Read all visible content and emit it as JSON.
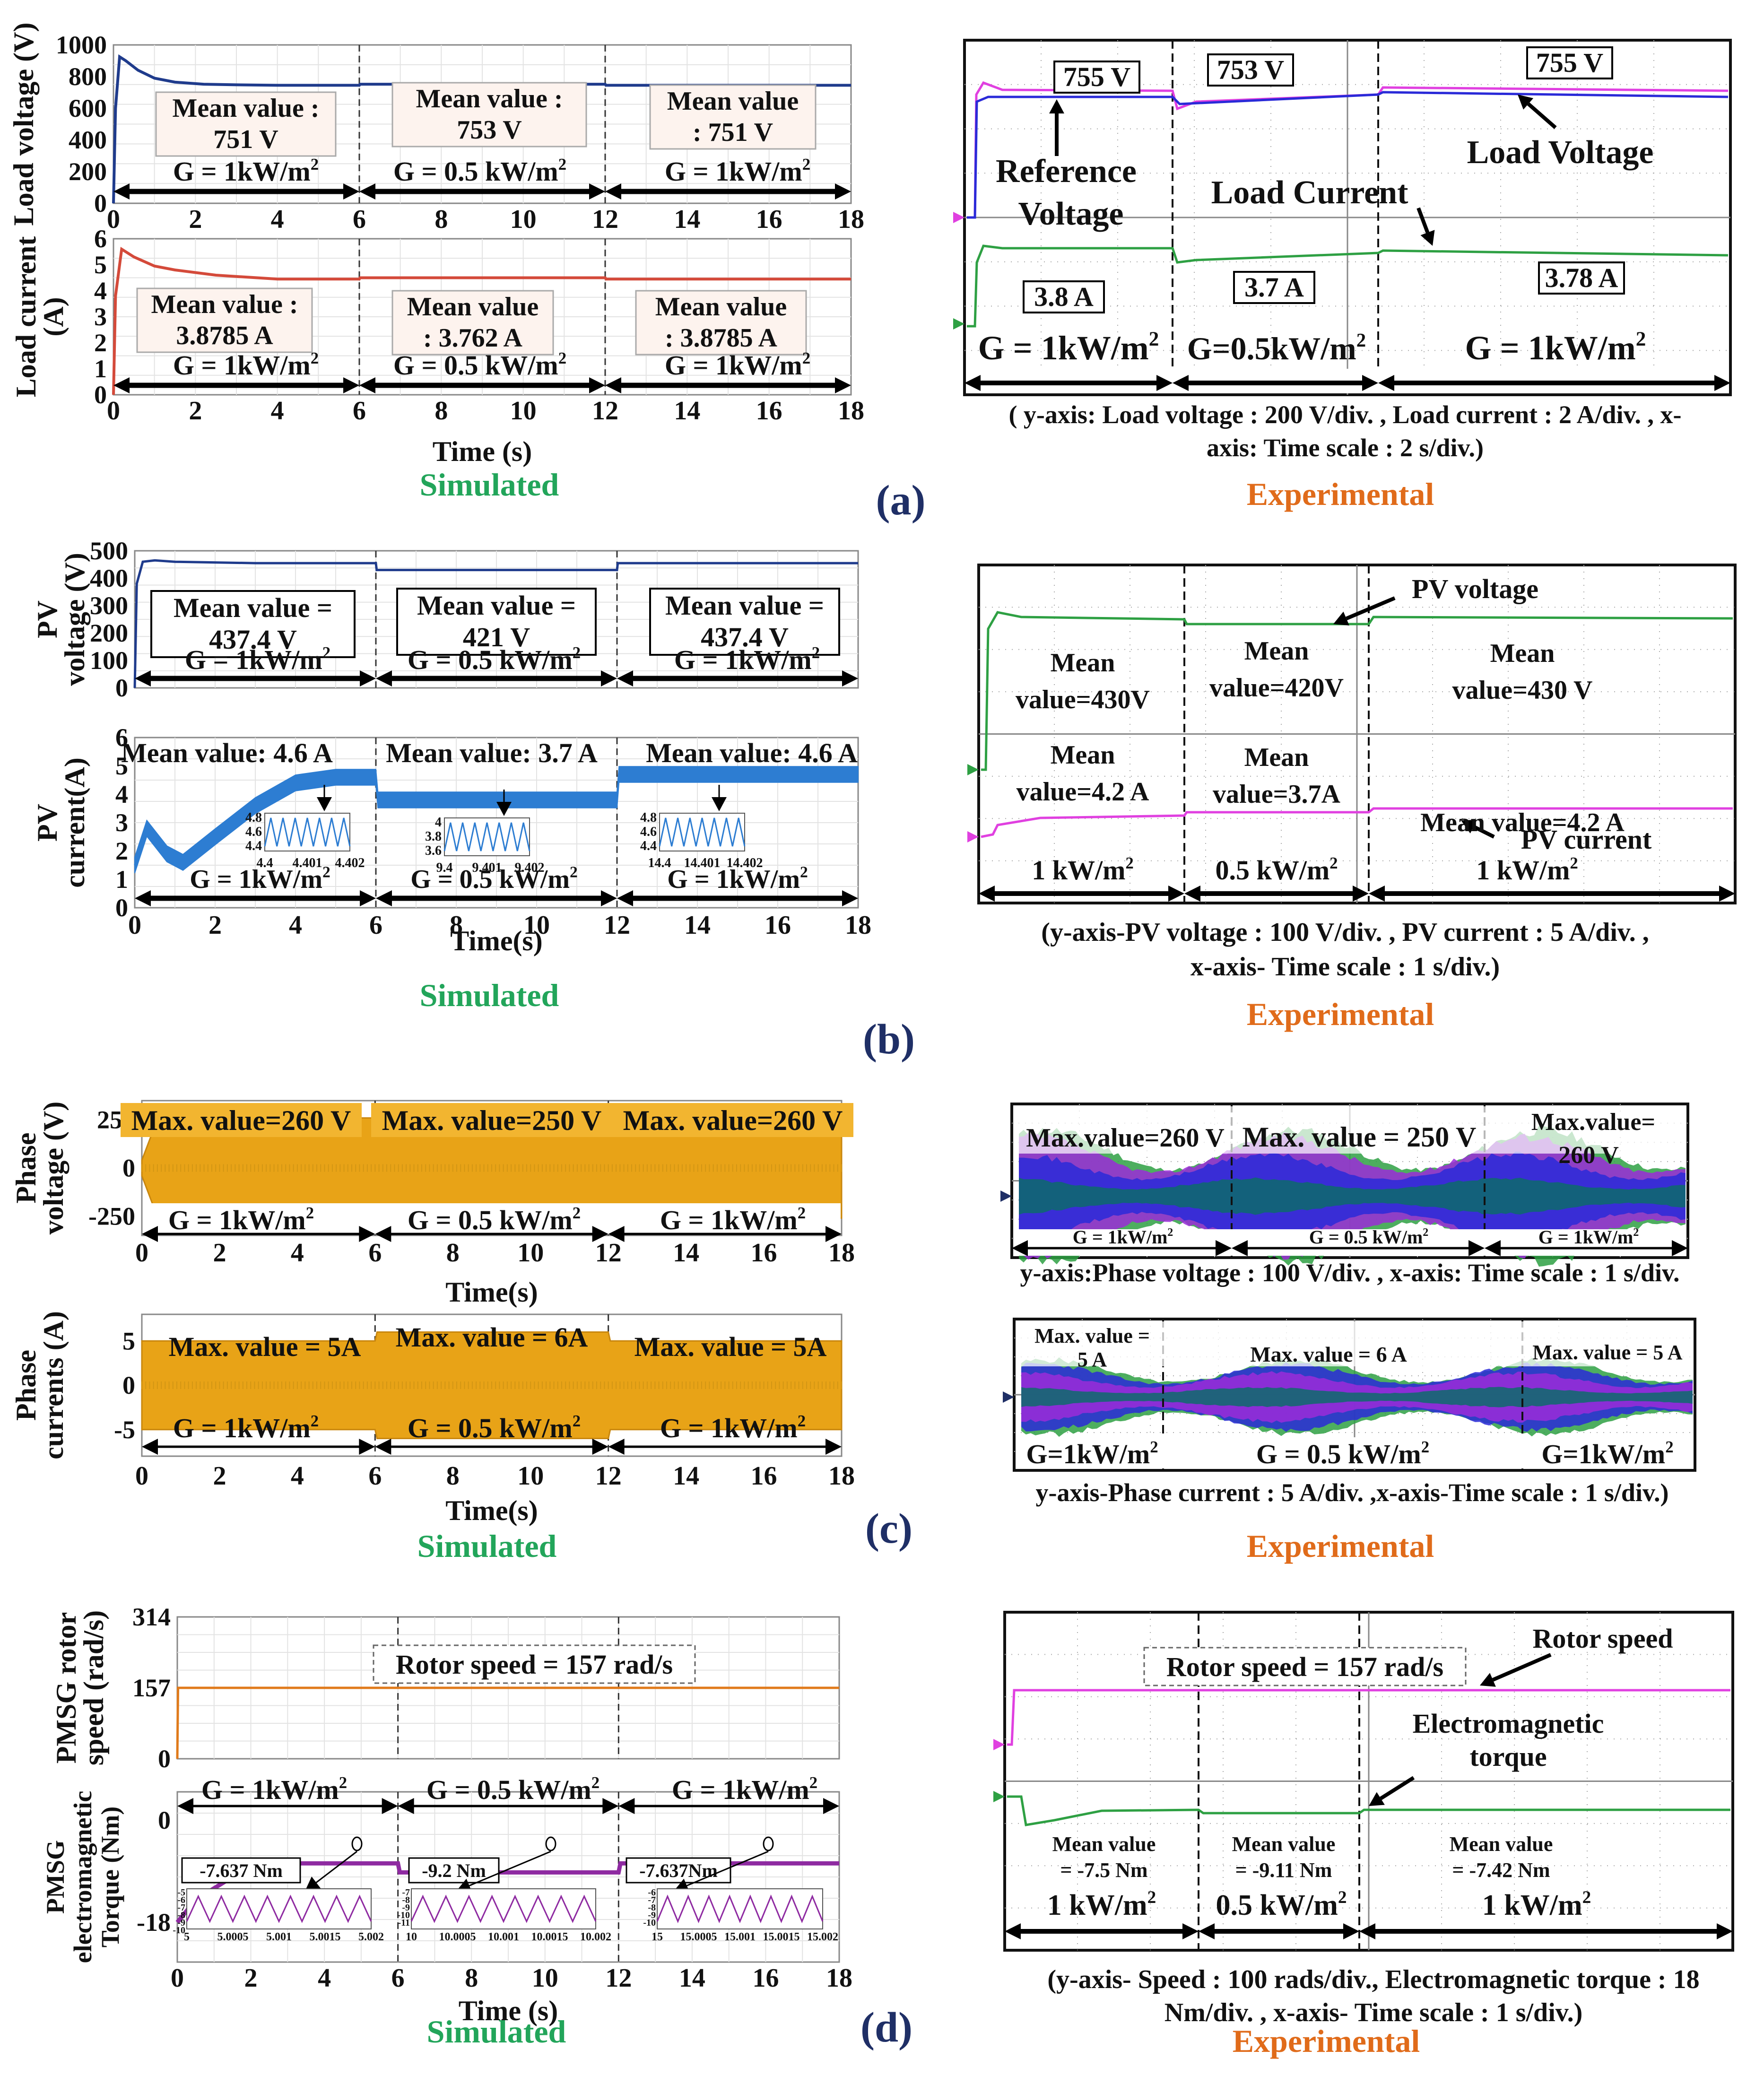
{
  "chart_data": [
    {
      "id": "a_sim_voltage",
      "panel": "(a)",
      "type": "line",
      "ylabel": "Load voltage (V)",
      "xlim": [
        0,
        18
      ],
      "ylim": [
        0,
        1000
      ],
      "yticks": [
        0,
        200,
        400,
        600,
        800,
        1000
      ],
      "xticks": [
        0,
        2,
        4,
        6,
        8,
        10,
        12,
        14,
        16,
        18
      ],
      "series": [
        {
          "name": "Load voltage",
          "color": "#1f3b8c",
          "x": [
            0,
            0.05,
            0.15,
            0.3,
            0.6,
            1,
            1.5,
            2.2,
            3,
            4,
            6,
            6.02,
            12,
            12.02,
            18
          ],
          "y": [
            0,
            600,
            925,
            900,
            840,
            790,
            765,
            752,
            748,
            745,
            745,
            752,
            752,
            745,
            745
          ]
        }
      ],
      "annotations": [
        {
          "text": "Mean value :",
          "text2": "751 V",
          "x": 4.1
        },
        {
          "text": "Mean value :",
          "text2": "753 V",
          "x": 8.8
        },
        {
          "text": "Mean value",
          "text2": ": 751 V",
          "x": 14.6
        }
      ],
      "regions": [
        "G = 1kW/m",
        "G = 0.5 kW/m",
        "G = 1kW/m"
      ]
    },
    {
      "id": "a_sim_current",
      "panel": "(a)",
      "type": "line",
      "ylabel": "Load current (A)",
      "xlabel": "Time (s)",
      "xlim": [
        0,
        18
      ],
      "ylim": [
        0,
        6
      ],
      "yticks": [
        0,
        1,
        2,
        3,
        4,
        5,
        6
      ],
      "xticks": [
        0,
        2,
        4,
        6,
        8,
        10,
        12,
        14,
        16,
        18
      ],
      "series": [
        {
          "name": "Load current",
          "color": "#d44a3a",
          "x": [
            0,
            0.05,
            0.2,
            0.5,
            1,
            1.5,
            2.5,
            4,
            6,
            6.02,
            12,
            12.02,
            18
          ],
          "y": [
            0,
            3.8,
            5.6,
            5.3,
            4.95,
            4.8,
            4.6,
            4.45,
            4.45,
            4.5,
            4.5,
            4.45,
            4.45
          ]
        }
      ],
      "annotations": [
        {
          "text": "Mean value :",
          "text2": "3.8785 A",
          "x": 4.1
        },
        {
          "text": "Mean value",
          "text2": ": 3.762 A",
          "x": 8.8
        },
        {
          "text": "Mean value",
          "text2": ": 3.8785 A",
          "x": 14.6
        }
      ],
      "regions": [
        "G = 1kW/m",
        "G = 0.5 kW/m",
        "G = 1kW/m"
      ]
    },
    {
      "id": "b_sim_voltage",
      "panel": "(b)",
      "type": "line",
      "ylabel": "PV voltage (V)",
      "xlim": [
        0,
        18
      ],
      "ylim": [
        0,
        500
      ],
      "yticks": [
        0,
        100,
        200,
        300,
        400,
        500
      ],
      "xticks": [
        0,
        2,
        4,
        6,
        8,
        10,
        12,
        14,
        16,
        18
      ],
      "series": [
        {
          "name": "PV voltage",
          "color": "#1f3b8c",
          "x": [
            0,
            0.05,
            0.2,
            0.5,
            1,
            3,
            6,
            6.02,
            12,
            12.02,
            18
          ],
          "y": [
            0,
            380,
            460,
            465,
            460,
            455,
            455,
            430,
            430,
            455,
            455
          ]
        }
      ],
      "annotations": [
        {
          "text": "Mean value =",
          "text2": "437.4 V",
          "x": 3.1
        },
        {
          "text": "Mean value =",
          "text2": "421 V",
          "x": 8.8
        },
        {
          "text": "Mean value =",
          "text2": "437.4 V",
          "x": 14.6
        }
      ],
      "regions": [
        "G = 1kW/m",
        "G = 0.5 kW/m",
        "G = 1kW/m"
      ]
    },
    {
      "id": "b_sim_current",
      "panel": "(b)",
      "type": "line",
      "ylabel": "PV current(A)",
      "xlabel": "Time(s)",
      "xlim": [
        0,
        18
      ],
      "ylim": [
        0,
        6
      ],
      "yticks": [
        0,
        1,
        2,
        3,
        4,
        5,
        6
      ],
      "xticks": [
        0,
        2,
        4,
        6,
        8,
        10,
        12,
        14,
        16,
        18
      ],
      "series": [
        {
          "name": "PV current",
          "color": "#2d7dd2",
          "x": [
            0,
            0.3,
            0.8,
            1.2,
            2,
            3,
            4,
            5,
            6,
            6.05,
            12,
            12.05,
            18
          ],
          "y": [
            1.5,
            2.8,
            1.9,
            1.6,
            2.5,
            3.6,
            4.4,
            4.6,
            4.6,
            3.8,
            3.8,
            4.7,
            4.7
          ]
        }
      ],
      "annotations": [
        {
          "text": "Mean value: 4.6 A",
          "x": 3.0
        },
        {
          "text": "Mean value: 3.7 A",
          "x": 9.0
        },
        {
          "text": "Mean value: 4.6 A",
          "x": 15.0
        }
      ],
      "insets": [
        {
          "ytick_labels": [
            "4.8",
            "4.6",
            "4.4"
          ],
          "xtick_labels": [
            "4.4",
            "4.401",
            "4.402"
          ]
        },
        {
          "ytick_labels": [
            "4",
            "3.8",
            "3.6"
          ],
          "xtick_labels": [
            "9.4",
            "9.401",
            "9.402"
          ]
        },
        {
          "ytick_labels": [
            "4.8",
            "4.6",
            "4.4"
          ],
          "xtick_labels": [
            "14.4",
            "14.401",
            "14.402"
          ]
        }
      ],
      "regions": [
        "G = 1kW/m",
        "G = 0.5 kW/m",
        "G = 1kW/m"
      ]
    },
    {
      "id": "c_sim_voltage",
      "panel": "(c)",
      "type": "area",
      "ylabel": "Phase voltage (V)",
      "xlabel": "Time(s)",
      "xlim": [
        0,
        18
      ],
      "ylim": [
        -350,
        350
      ],
      "ytick_labels": [
        "250",
        "0",
        "-250"
      ],
      "yticks": [
        250,
        0,
        -250
      ],
      "xticks": [
        0,
        2,
        4,
        6,
        8,
        10,
        12,
        14,
        16,
        18
      ],
      "series": [
        {
          "name": "Phase voltage envelope",
          "color": "#e8a317",
          "x": [
            0,
            0.3,
            1,
            6,
            6.05,
            12,
            12.05,
            18
          ],
          "y": [
            40,
            200,
            260,
            260,
            250,
            250,
            260,
            260
          ]
        }
      ],
      "annotations": [
        "Max. value=260 V",
        "Max. value=250 V",
        "Max. value=260 V"
      ],
      "regions": [
        "G = 1kW/m",
        "G = 0.5 kW/m",
        "G = 1kW/m"
      ]
    },
    {
      "id": "c_sim_current",
      "panel": "(c)",
      "type": "area",
      "ylabel": "Phase currents (A)",
      "xlabel": "Time(s)",
      "xlim": [
        0,
        18
      ],
      "ylim": [
        -8,
        8
      ],
      "ytick_labels": [
        "5",
        "0",
        "-5"
      ],
      "yticks": [
        5,
        0,
        -5
      ],
      "xticks": [
        0,
        2,
        4,
        6,
        8,
        10,
        12,
        14,
        16,
        18
      ],
      "series": [
        {
          "name": "Phase current envelope",
          "color": "#e8a317",
          "x": [
            0,
            6,
            6.05,
            12,
            12.05,
            18
          ],
          "y": [
            5,
            5,
            6,
            6,
            5,
            5
          ]
        }
      ],
      "annotations": [
        "Max. value = 5A",
        "Max. value = 6A",
        "Max. value = 5A"
      ],
      "regions": [
        "G = 1kW/m",
        "G = 0.5 kW/m",
        "G = 1kW/m"
      ]
    },
    {
      "id": "d_sim_speed",
      "panel": "(d)",
      "type": "line",
      "ylabel": "PMSG rotor speed (rad/s)",
      "xlim": [
        0,
        18
      ],
      "ylim": [
        0,
        314
      ],
      "yticks": [
        0,
        157,
        314
      ],
      "series": [
        {
          "name": "Rotor speed",
          "color": "#e07a1a",
          "x": [
            0,
            0.02,
            18
          ],
          "y": [
            0,
            157,
            157
          ]
        }
      ],
      "annotations": [
        "Rotor speed = 157 rad/s"
      ]
    },
    {
      "id": "d_sim_torque",
      "panel": "(d)",
      "type": "line",
      "ylabel": "PMSG electromagnetic Torque (Nm)",
      "xlabel": "Time (s)",
      "xlim": [
        0,
        18
      ],
      "ylim": [
        -25,
        5
      ],
      "ytick_labels": [
        "0",
        "-18"
      ],
      "yticks": [
        0,
        -18
      ],
      "xticks": [
        0,
        2,
        4,
        6,
        8,
        10,
        12,
        14,
        16,
        18
      ],
      "series": [
        {
          "name": "Electromagnetic torque",
          "color": "#8e2aa1",
          "x": [
            0,
            0.5,
            1.5,
            3,
            6,
            6.05,
            12,
            12.05,
            18
          ],
          "y": [
            -18,
            -14,
            -10,
            -7.6,
            -7.6,
            -9.2,
            -9.2,
            -7.6,
            -7.6
          ]
        }
      ],
      "annotations": [
        "-7.637 Nm",
        "-9.2 Nm",
        "-7.637Nm"
      ],
      "insets": [
        {
          "ytick_labels": [
            "-5",
            "-6",
            "-7",
            "-8",
            "-9",
            "-10"
          ],
          "xtick_labels": [
            "5",
            "5.0005",
            "5.001",
            "5.0015",
            "5.002"
          ]
        },
        {
          "ytick_labels": [
            "-7",
            "-8",
            "-9",
            "-10",
            "-11"
          ],
          "xtick_labels": [
            "10",
            "10.0005",
            "10.001",
            "10.0015",
            "10.002"
          ]
        },
        {
          "ytick_labels": [
            "-6",
            "-7",
            "-8",
            "-9",
            "-10"
          ],
          "xtick_labels": [
            "15",
            "15.0005",
            "15.001",
            "15.0015",
            "15.002"
          ]
        }
      ],
      "regions": [
        "G = 1kW/m",
        "G = 0.5 kW/m",
        "G = 1kW/m"
      ]
    },
    {
      "id": "a_exp",
      "panel": "(a)",
      "type": "line",
      "kind": "oscilloscope",
      "values_shown": [
        "755 V",
        "753 V",
        "755 V",
        "3.8 A",
        "3.7 A",
        "3.78 A"
      ],
      "labels": [
        "Reference",
        "Voltage",
        "Load Current",
        "Load Voltage"
      ],
      "regions": [
        "G = 1kW/m",
        "G=0.5kW/m",
        "G = 1kW/m"
      ],
      "caption": [
        "( y-axis: Load voltage : 200 V/div. , Load current : 2 A/div. , x-",
        "axis: Time scale : 2 s/div.)"
      ]
    },
    {
      "id": "b_exp",
      "panel": "(b)",
      "type": "line",
      "kind": "oscilloscope",
      "labels": [
        "PV voltage",
        "PV current"
      ],
      "means_top": [
        [
          "Mean",
          "value=430V"
        ],
        [
          "Mean",
          "value=420V"
        ],
        [
          "Mean",
          "value=430 V"
        ]
      ],
      "means_bottom": [
        [
          "Mean",
          "value=4.2 A"
        ],
        [
          "Mean",
          "value=3.7A"
        ],
        [
          "",
          "Mean value=4.2 A"
        ]
      ],
      "regions": [
        "1 kW/m",
        "0.5 kW/m",
        "1 kW/m"
      ],
      "caption": [
        "(y-axis-PV voltage : 100 V/div. , PV current : 5 A/div. ,",
        "x-axis- Time scale : 1 s/div.)"
      ]
    },
    {
      "id": "c_exp_voltage",
      "panel": "(c)",
      "type": "area",
      "kind": "oscilloscope",
      "annotations": [
        "Max.value=260 V",
        "Max. value = 250 V",
        "Max.value=",
        "260 V"
      ],
      "regions": [
        "G = 1kW/m",
        "G = 0.5 kW/m",
        "G = 1kW/m"
      ],
      "caption": [
        "y-axis:Phase voltage : 100 V/div. , x-axis: Time scale : 1 s/div."
      ]
    },
    {
      "id": "c_exp_current",
      "panel": "(c)",
      "type": "area",
      "kind": "oscilloscope",
      "annotations": [
        "Max. value =",
        "5 A",
        "Max.  value = 6 A",
        "Max. value = 5 A"
      ],
      "regions": [
        "G=1kW/m",
        "G = 0.5 kW/m",
        "G=1kW/m"
      ],
      "caption": [
        "y-axis-Phase current : 5 A/div. ,x-axis-Time scale : 1 s/div.)"
      ]
    },
    {
      "id": "d_exp",
      "panel": "(d)",
      "type": "line",
      "kind": "oscilloscope",
      "labels": [
        "Rotor speed = 157 rad/s",
        "Rotor speed",
        "Electromagnetic",
        "torque"
      ],
      "means": [
        [
          "Mean value",
          "= -7.5 Nm"
        ],
        [
          "Mean value",
          "= -9.11 Nm"
        ],
        [
          "Mean value",
          "= -7.42 Nm"
        ]
      ],
      "regions": [
        "1 kW/m",
        "0.5 kW/m",
        "1 kW/m"
      ],
      "caption": [
        "(y-axis- Speed : 100 rads/div., Electromagnetic torque : 18",
        "Nm/div. , x-axis- Time scale : 1 s/div.)"
      ]
    }
  ],
  "labels": {
    "simulated": "Simulated",
    "experimental": "Experimental",
    "superscript": "2",
    "panel_a": "(a)",
    "panel_b": "(b)",
    "panel_c": "(c)",
    "panel_d": "(d)"
  },
  "colors": {
    "simulated": "#22a55a",
    "experimental": "#e06b1a",
    "panel_label": "#1f2f66",
    "scope_magenta": "#e040e0",
    "scope_green": "#2ea043",
    "scope_blue": "#2a2ad8",
    "scope_purple": "#9b2bd8"
  }
}
